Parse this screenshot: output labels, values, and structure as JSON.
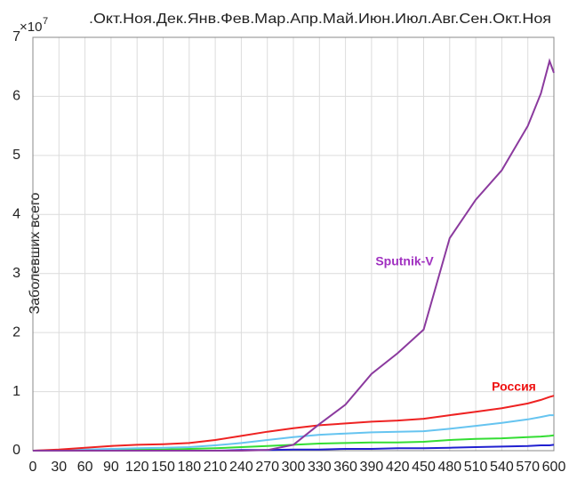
{
  "chart_data": {
    "type": "line",
    "top_axis_label": ".Окт.Ноя.Дек.Янв.Фев.Мар.Апр.Май.Июн.Июл.Авг.Сен.Окт.Ноя",
    "y_label": "Заболевших всего",
    "y_scale_base": "×10",
    "y_scale_exponent": "7",
    "x": [
      0,
      30,
      60,
      90,
      120,
      150,
      180,
      210,
      240,
      270,
      300,
      330,
      360,
      390,
      420,
      450,
      480,
      510,
      540,
      570,
      585,
      595,
      600
    ],
    "series": [
      {
        "color": "#2020d0",
        "values": [
          0,
          0,
          0,
          0,
          0,
          0,
          0,
          0,
          0.01,
          0.01,
          0.02,
          0.02,
          0.03,
          0.03,
          0.04,
          0.04,
          0.05,
          0.06,
          0.07,
          0.08,
          0.09,
          0.09,
          0.1
        ]
      },
      {
        "color": "#33dd33",
        "values": [
          0,
          0,
          0.01,
          0.01,
          0.02,
          0.02,
          0.03,
          0.04,
          0.06,
          0.08,
          0.1,
          0.12,
          0.13,
          0.14,
          0.14,
          0.15,
          0.18,
          0.2,
          0.21,
          0.23,
          0.24,
          0.25,
          0.26
        ]
      },
      {
        "color": "#66c4f0",
        "values": [
          0,
          0.01,
          0.02,
          0.03,
          0.04,
          0.05,
          0.06,
          0.09,
          0.13,
          0.18,
          0.23,
          0.27,
          0.29,
          0.31,
          0.32,
          0.33,
          0.37,
          0.42,
          0.47,
          0.53,
          0.57,
          0.6,
          0.6
        ]
      },
      {
        "color": "#ee2222",
        "values": [
          0,
          0.02,
          0.05,
          0.08,
          0.1,
          0.11,
          0.13,
          0.18,
          0.25,
          0.32,
          0.38,
          0.43,
          0.46,
          0.49,
          0.51,
          0.54,
          0.6,
          0.66,
          0.72,
          0.8,
          0.86,
          0.91,
          0.93
        ]
      },
      {
        "color": "#8b3a9e",
        "values": [
          0,
          0,
          0,
          0,
          0,
          0,
          0,
          0,
          0,
          0.01,
          0.1,
          0.45,
          0.78,
          1.3,
          1.65,
          2.05,
          3.6,
          4.25,
          4.75,
          5.5,
          6.05,
          6.6,
          6.4
        ]
      }
    ],
    "annotations": [
      {
        "text": "Sputnik-V",
        "color": "#a030c0"
      },
      {
        "text": "Россия",
        "color": "#ee1111"
      }
    ],
    "xlim": [
      0,
      600
    ],
    "xticks": [
      0,
      30,
      60,
      90,
      120,
      150,
      180,
      210,
      240,
      270,
      300,
      330,
      360,
      390,
      420,
      450,
      480,
      510,
      540,
      570,
      600
    ],
    "ylim": [
      0,
      7
    ],
    "yticks": [
      0,
      1,
      2,
      3,
      4,
      5,
      6,
      7
    ],
    "grid": true
  }
}
